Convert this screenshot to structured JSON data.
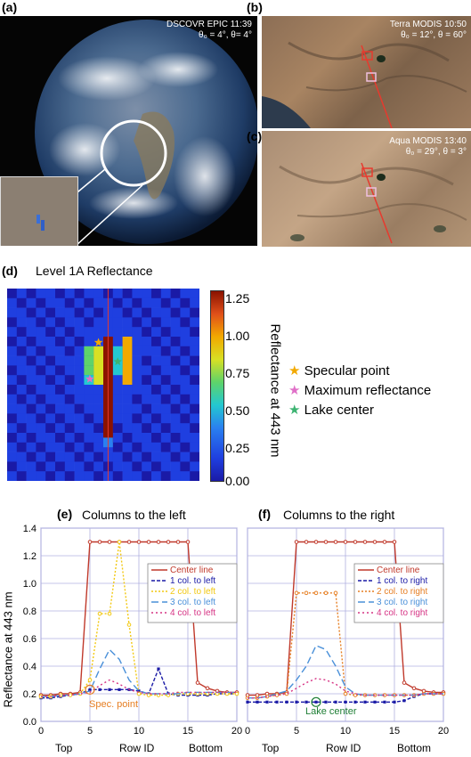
{
  "figure": {
    "panel_a": {
      "label": "(a)",
      "caption_line1": "DSCOVR EPIC 11:39",
      "caption_line2": "θ₀ = 4°, θ= 4°"
    },
    "panel_b": {
      "label": "(b)",
      "caption_line1": "Terra MODIS 10:50",
      "caption_line2": "θ₀ = 12°, θ = 60°"
    },
    "panel_c": {
      "label": "(c)",
      "caption_line1": "Aqua MODIS 13:40",
      "caption_line2": "θ₀ = 29°, θ = 3°"
    },
    "panel_d": {
      "label": "(d)",
      "title": "Level 1A Reflectance",
      "colorbar_label": "Reflectance at 443 nm",
      "colorbar_ticks": [
        "1.25",
        "1.00",
        "0.75",
        "0.50",
        "0.25",
        "0.00"
      ],
      "legend": [
        {
          "label": "Specular point",
          "color": "#f2a900"
        },
        {
          "label": "Maximum reflectance",
          "color": "#e070c8"
        },
        {
          "label": "Lake center",
          "color": "#3cb371"
        }
      ]
    },
    "panel_e": {
      "label": "(e)",
      "title": "Columns to the left",
      "annotation": "Spec. point"
    },
    "panel_f": {
      "label": "(f)",
      "title": "Columns to the right",
      "annotation": "Lake center"
    },
    "shared_axes": {
      "ylabel": "Reflectance at 443 nm",
      "xlabel": "Row ID",
      "left_end": "Top",
      "right_end": "Bottom"
    }
  },
  "chart_data": [
    {
      "type": "line",
      "panel": "e",
      "title": "Columns to the left",
      "xlabel": "Row ID",
      "ylabel": "Reflectance at 443 nm",
      "xlim": [
        0,
        20
      ],
      "ylim": [
        0,
        1.4
      ],
      "xticks": [
        0,
        5,
        10,
        15,
        20
      ],
      "yticks": [
        0,
        0.2,
        0.4,
        0.6,
        0.8,
        1.0,
        1.2,
        1.4
      ],
      "legend_position": "right",
      "x": [
        0,
        1,
        2,
        3,
        4,
        5,
        6,
        7,
        8,
        9,
        10,
        11,
        12,
        13,
        14,
        15,
        16,
        17,
        18,
        19,
        20
      ],
      "series": [
        {
          "name": "Center line",
          "color": "#c0392b",
          "dash": "",
          "marker": "circle",
          "values": [
            0.19,
            0.19,
            0.2,
            0.2,
            0.21,
            1.3,
            1.3,
            1.3,
            1.3,
            1.3,
            1.3,
            1.3,
            1.3,
            1.3,
            1.3,
            1.3,
            0.28,
            0.24,
            0.22,
            0.21,
            0.21
          ]
        },
        {
          "name": "1 col. to left",
          "color": "#1a1aa6",
          "dash": "4,2",
          "marker": "square",
          "values": [
            0.17,
            0.17,
            0.18,
            0.19,
            0.2,
            0.23,
            0.23,
            0.23,
            0.23,
            0.23,
            0.22,
            0.2,
            0.38,
            0.2,
            0.19,
            0.19,
            0.19,
            0.19,
            0.2,
            0.2,
            0.2
          ]
        },
        {
          "name": "2 col. to left",
          "color": "#f2c811",
          "dash": "2,2",
          "marker": "circle",
          "values": [
            0.18,
            0.18,
            0.19,
            0.19,
            0.2,
            0.3,
            0.78,
            0.78,
            1.3,
            0.7,
            0.2,
            0.19,
            0.19,
            0.19,
            0.2,
            0.2,
            0.2,
            0.2,
            0.2,
            0.2,
            0.2
          ]
        },
        {
          "name": "3 col. to left",
          "color": "#4a90d9",
          "dash": "8,4",
          "marker": "",
          "values": [
            0.18,
            0.18,
            0.19,
            0.19,
            0.2,
            0.22,
            0.38,
            0.52,
            0.45,
            0.3,
            0.22,
            0.2,
            0.2,
            0.2,
            0.2,
            0.21,
            0.21,
            0.21,
            0.21,
            0.21,
            0.21
          ]
        },
        {
          "name": "4 col. to left",
          "color": "#d63384",
          "dash": "2,3",
          "marker": "",
          "values": [
            0.18,
            0.18,
            0.19,
            0.19,
            0.2,
            0.21,
            0.26,
            0.3,
            0.27,
            0.23,
            0.21,
            0.2,
            0.2,
            0.2,
            0.21,
            0.21,
            0.21,
            0.21,
            0.21,
            0.21,
            0.21
          ]
        }
      ]
    },
    {
      "type": "line",
      "panel": "f",
      "title": "Columns to the right",
      "xlabel": "Row ID",
      "ylabel": "",
      "xlim": [
        0,
        20
      ],
      "ylim": [
        0,
        1.4
      ],
      "xticks": [
        0,
        5,
        10,
        15,
        20
      ],
      "yticks": [
        0,
        0.2,
        0.4,
        0.6,
        0.8,
        1.0,
        1.2,
        1.4
      ],
      "legend_position": "right",
      "x": [
        0,
        1,
        2,
        3,
        4,
        5,
        6,
        7,
        8,
        9,
        10,
        11,
        12,
        13,
        14,
        15,
        16,
        17,
        18,
        19,
        20
      ],
      "series": [
        {
          "name": "Center line",
          "color": "#c0392b",
          "dash": "",
          "marker": "circle",
          "values": [
            0.19,
            0.19,
            0.2,
            0.2,
            0.21,
            1.3,
            1.3,
            1.3,
            1.3,
            1.3,
            1.3,
            1.3,
            1.3,
            1.3,
            1.3,
            1.3,
            0.28,
            0.24,
            0.22,
            0.21,
            0.21
          ]
        },
        {
          "name": "1 col. to right",
          "color": "#1a1aa6",
          "dash": "4,2",
          "marker": "square",
          "values": [
            0.14,
            0.14,
            0.14,
            0.14,
            0.14,
            0.14,
            0.14,
            0.14,
            0.14,
            0.14,
            0.14,
            0.14,
            0.14,
            0.14,
            0.14,
            0.14,
            0.15,
            0.18,
            0.2,
            0.2,
            0.2
          ]
        },
        {
          "name": "2 col. to right",
          "color": "#e67e22",
          "dash": "2,2",
          "marker": "circle",
          "values": [
            0.17,
            0.17,
            0.18,
            0.19,
            0.2,
            0.93,
            0.93,
            0.93,
            0.93,
            0.93,
            0.2,
            0.19,
            0.19,
            0.19,
            0.19,
            0.19,
            0.19,
            0.19,
            0.2,
            0.2,
            0.2
          ]
        },
        {
          "name": "3 col. to right",
          "color": "#4a90d9",
          "dash": "8,4",
          "marker": "",
          "values": [
            0.17,
            0.17,
            0.18,
            0.2,
            0.22,
            0.3,
            0.4,
            0.55,
            0.52,
            0.4,
            0.25,
            0.2,
            0.19,
            0.19,
            0.19,
            0.19,
            0.19,
            0.19,
            0.2,
            0.2,
            0.2
          ]
        },
        {
          "name": "4 col. to right",
          "color": "#d63384",
          "dash": "2,3",
          "marker": "",
          "values": [
            0.17,
            0.17,
            0.18,
            0.19,
            0.2,
            0.24,
            0.28,
            0.31,
            0.3,
            0.27,
            0.22,
            0.2,
            0.19,
            0.19,
            0.19,
            0.19,
            0.19,
            0.19,
            0.2,
            0.2,
            0.2
          ]
        }
      ]
    }
  ]
}
